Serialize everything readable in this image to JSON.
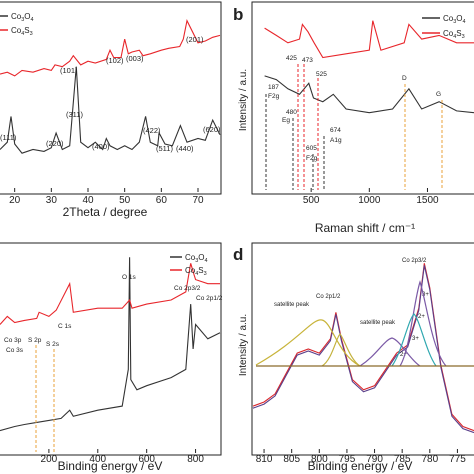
{
  "panels": [
    {
      "id": "a",
      "label": "",
      "chart_data": {
        "type": "line",
        "title": "",
        "xlabel": "2Theta / degree",
        "ylabel": "",
        "xlim": [
          16,
          76
        ],
        "ylim": [
          0,
          100
        ],
        "x_ticks": [
          20,
          30,
          40,
          50,
          60,
          70
        ],
        "legend": [
          {
            "name": "Co3O4",
            "color": "#333333"
          },
          {
            "name": "Co4S3",
            "color": "#e8262b"
          }
        ],
        "series": [
          {
            "name": "Co3O4",
            "color": "#333333",
            "x": [
              16,
              18,
              19,
              20,
              22,
              25,
              28,
              30,
              31.3,
              33,
              35,
              36.8,
              38,
              40,
              42,
              44,
              45,
              46,
              48,
              50,
              52,
              54,
              55.7,
              57,
              59,
              59.4,
              61,
              63,
              65.2,
              67,
              70,
              72,
              74,
              76
            ],
            "y": [
              22,
              26,
              40,
              25,
              20,
              22,
              21,
              23,
              31,
              22,
              24,
              67,
              26,
              23,
              26,
              22,
              28,
              24,
              22,
              24,
              22,
              26,
              40,
              26,
              24,
              31,
              25,
              24,
              35,
              26,
              28,
              27,
              38,
              30
            ]
          },
          {
            "name": "Co4S3",
            "color": "#e8262b",
            "x": [
              16,
              18,
              20,
              22,
              25,
              28,
              30,
              31,
              33,
              35,
              36,
              38,
              40,
              42,
              45,
              46,
              47,
              49,
              50,
              51,
              52,
              54,
              55,
              57,
              60,
              62,
              65,
              66,
              67,
              70,
              72,
              74,
              76
            ],
            "y": [
              63,
              64,
              62,
              65,
              64,
              66,
              65,
              68,
              67,
              70,
              73,
              68,
              70,
              69,
              71,
              76,
              72,
              72,
              82,
              74,
              75,
              76,
              73,
              74,
              76,
              77,
              78,
              82,
              92,
              80,
              81,
              83,
              84
            ]
          }
        ],
        "annotations": [
          "(111)",
          "(220)",
          "(311)",
          "(400)",
          "(422)",
          "(511)",
          "(440)",
          "(620)",
          "(101)",
          "(102)",
          "(003)",
          "(201)"
        ]
      }
    },
    {
      "id": "b",
      "label": "b",
      "chart_data": {
        "type": "line",
        "title": "",
        "xlabel": "Raman shift / cm⁻¹",
        "ylabel": "Intensity / a.u.",
        "xlim": [
          0,
          1900
        ],
        "ylim": [
          0,
          100
        ],
        "x_ticks": [
          500,
          1000,
          1500
        ],
        "legend": [
          {
            "name": "Co3O4",
            "color": "#333333"
          },
          {
            "name": "Co4S3",
            "color": "#e8262b"
          }
        ],
        "series": [
          {
            "name": "Co3O4",
            "color": "#333333",
            "x": [
              100,
              200,
              300,
              400,
              480,
              520,
              600,
              690,
              800,
              1000,
              1200,
              1340,
              1450,
              1600,
              1750,
              1900
            ],
            "y": [
              62,
              60,
              55,
              52,
              58,
              50,
              48,
              52,
              44,
              42,
              44,
              55,
              44,
              48,
              43,
              42
            ]
          },
          {
            "name": "Co4S3",
            "color": "#e8262b",
            "x": [
              100,
              200,
              300,
              400,
              425,
              473,
              525,
              600,
              800,
              1000,
              1030,
              1100,
              1300,
              1340,
              1450,
              1600,
              1750,
              1900
            ],
            "y": [
              88,
              84,
              80,
              82,
              90,
              86,
              80,
              72,
              74,
              76,
              92,
              76,
              80,
              90,
              82,
              84,
              80,
              80
            ]
          }
        ],
        "annotations": [
          "187",
          "F2g",
          "480",
          "Eg",
          "425",
          "473",
          "525",
          "605",
          "F2g",
          "674",
          "A1g",
          "D",
          "G"
        ]
      }
    },
    {
      "id": "c",
      "label": "",
      "chart_data": {
        "type": "line",
        "title": "",
        "xlabel": "Binding energy / eV",
        "ylabel": "",
        "xlim": [
          0,
          900
        ],
        "ylim": [
          0,
          100
        ],
        "x_ticks": [
          200,
          400,
          600,
          800
        ],
        "legend": [
          {
            "name": "Co3O4",
            "color": "#333333"
          },
          {
            "name": "Co4S3",
            "color": "#e8262b"
          }
        ],
        "series": [
          {
            "name": "Co3O4",
            "color": "#333333",
            "x": [
              0,
              60,
              100,
              150,
              200,
              250,
              285,
              300,
              400,
              500,
              525,
              530,
              535,
              560,
              600,
              700,
              760,
              780,
              790,
              800,
              850,
              900
            ],
            "y": [
              10,
              12,
              13,
              14,
              15,
              16,
              20,
              17,
              20,
              22,
              40,
              95,
              35,
              30,
              32,
              36,
              40,
              72,
              50,
              62,
              55,
              58
            ]
          },
          {
            "name": "Co4S3",
            "color": "#e8262b",
            "x": [
              0,
              30,
              60,
              100,
              150,
              160,
              200,
              230,
              285,
              300,
              400,
              500,
              530,
              540,
              600,
              700,
              760,
              780,
              795,
              800,
              850,
              900
            ],
            "y": [
              62,
              66,
              63,
              64,
              65,
              68,
              66,
              69,
              82,
              68,
              70,
              70,
              74,
              70,
              72,
              74,
              78,
              92,
              86,
              84,
              82,
              82
            ]
          }
        ],
        "annotations": [
          "O 1s",
          "C 1s",
          "Co 2p3/2",
          "Co 2p1/2",
          "S 2p",
          "S 2s",
          "Co 3p",
          "Co 3s"
        ]
      }
    },
    {
      "id": "d",
      "label": "d",
      "chart_data": {
        "type": "line",
        "title": "",
        "xlabel": "Binding energy / eV",
        "ylabel": "Intensity / a.u.",
        "xlim": [
          812,
          772
        ],
        "ylim": [
          0,
          100
        ],
        "x_ticks": [
          810,
          805,
          800,
          795,
          790,
          785,
          780,
          775
        ],
        "series": [
          {
            "name": "measured",
            "color": "#d9262b",
            "x": [
              812,
              810,
              808,
              806,
              804,
              802,
              800,
              798,
              797,
              796,
              794,
              792,
              790,
              788,
              786,
              784,
              782,
              781,
              780,
              778,
              776,
              774,
              772
            ],
            "y": [
              22,
              24,
              28,
              38,
              48,
              50,
              48,
              55,
              68,
              55,
              35,
              30,
              32,
              40,
              48,
              52,
              70,
              92,
              80,
              42,
              18,
              12,
              10
            ]
          },
          {
            "name": "fit",
            "color": "#5a3f8a",
            "x": [
              812,
              810,
              808,
              806,
              804,
              802,
              800,
              798,
              797,
              796,
              794,
              792,
              790,
              788,
              786,
              784,
              782,
              781,
              780,
              778,
              776,
              774,
              772
            ],
            "y": [
              21,
              23,
              27,
              37,
              47,
              49,
              47,
              54,
              67,
              54,
              34,
              29,
              31,
              39,
              47,
              51,
              69,
              91,
              79,
              41,
              17,
              11,
              9
            ]
          }
        ],
        "annotations": [
          "satellite peak",
          "Co 2p1/2",
          "satellite peak",
          "Co 2p3/2",
          "3+",
          "2+",
          "3+",
          "2+"
        ]
      }
    }
  ]
}
